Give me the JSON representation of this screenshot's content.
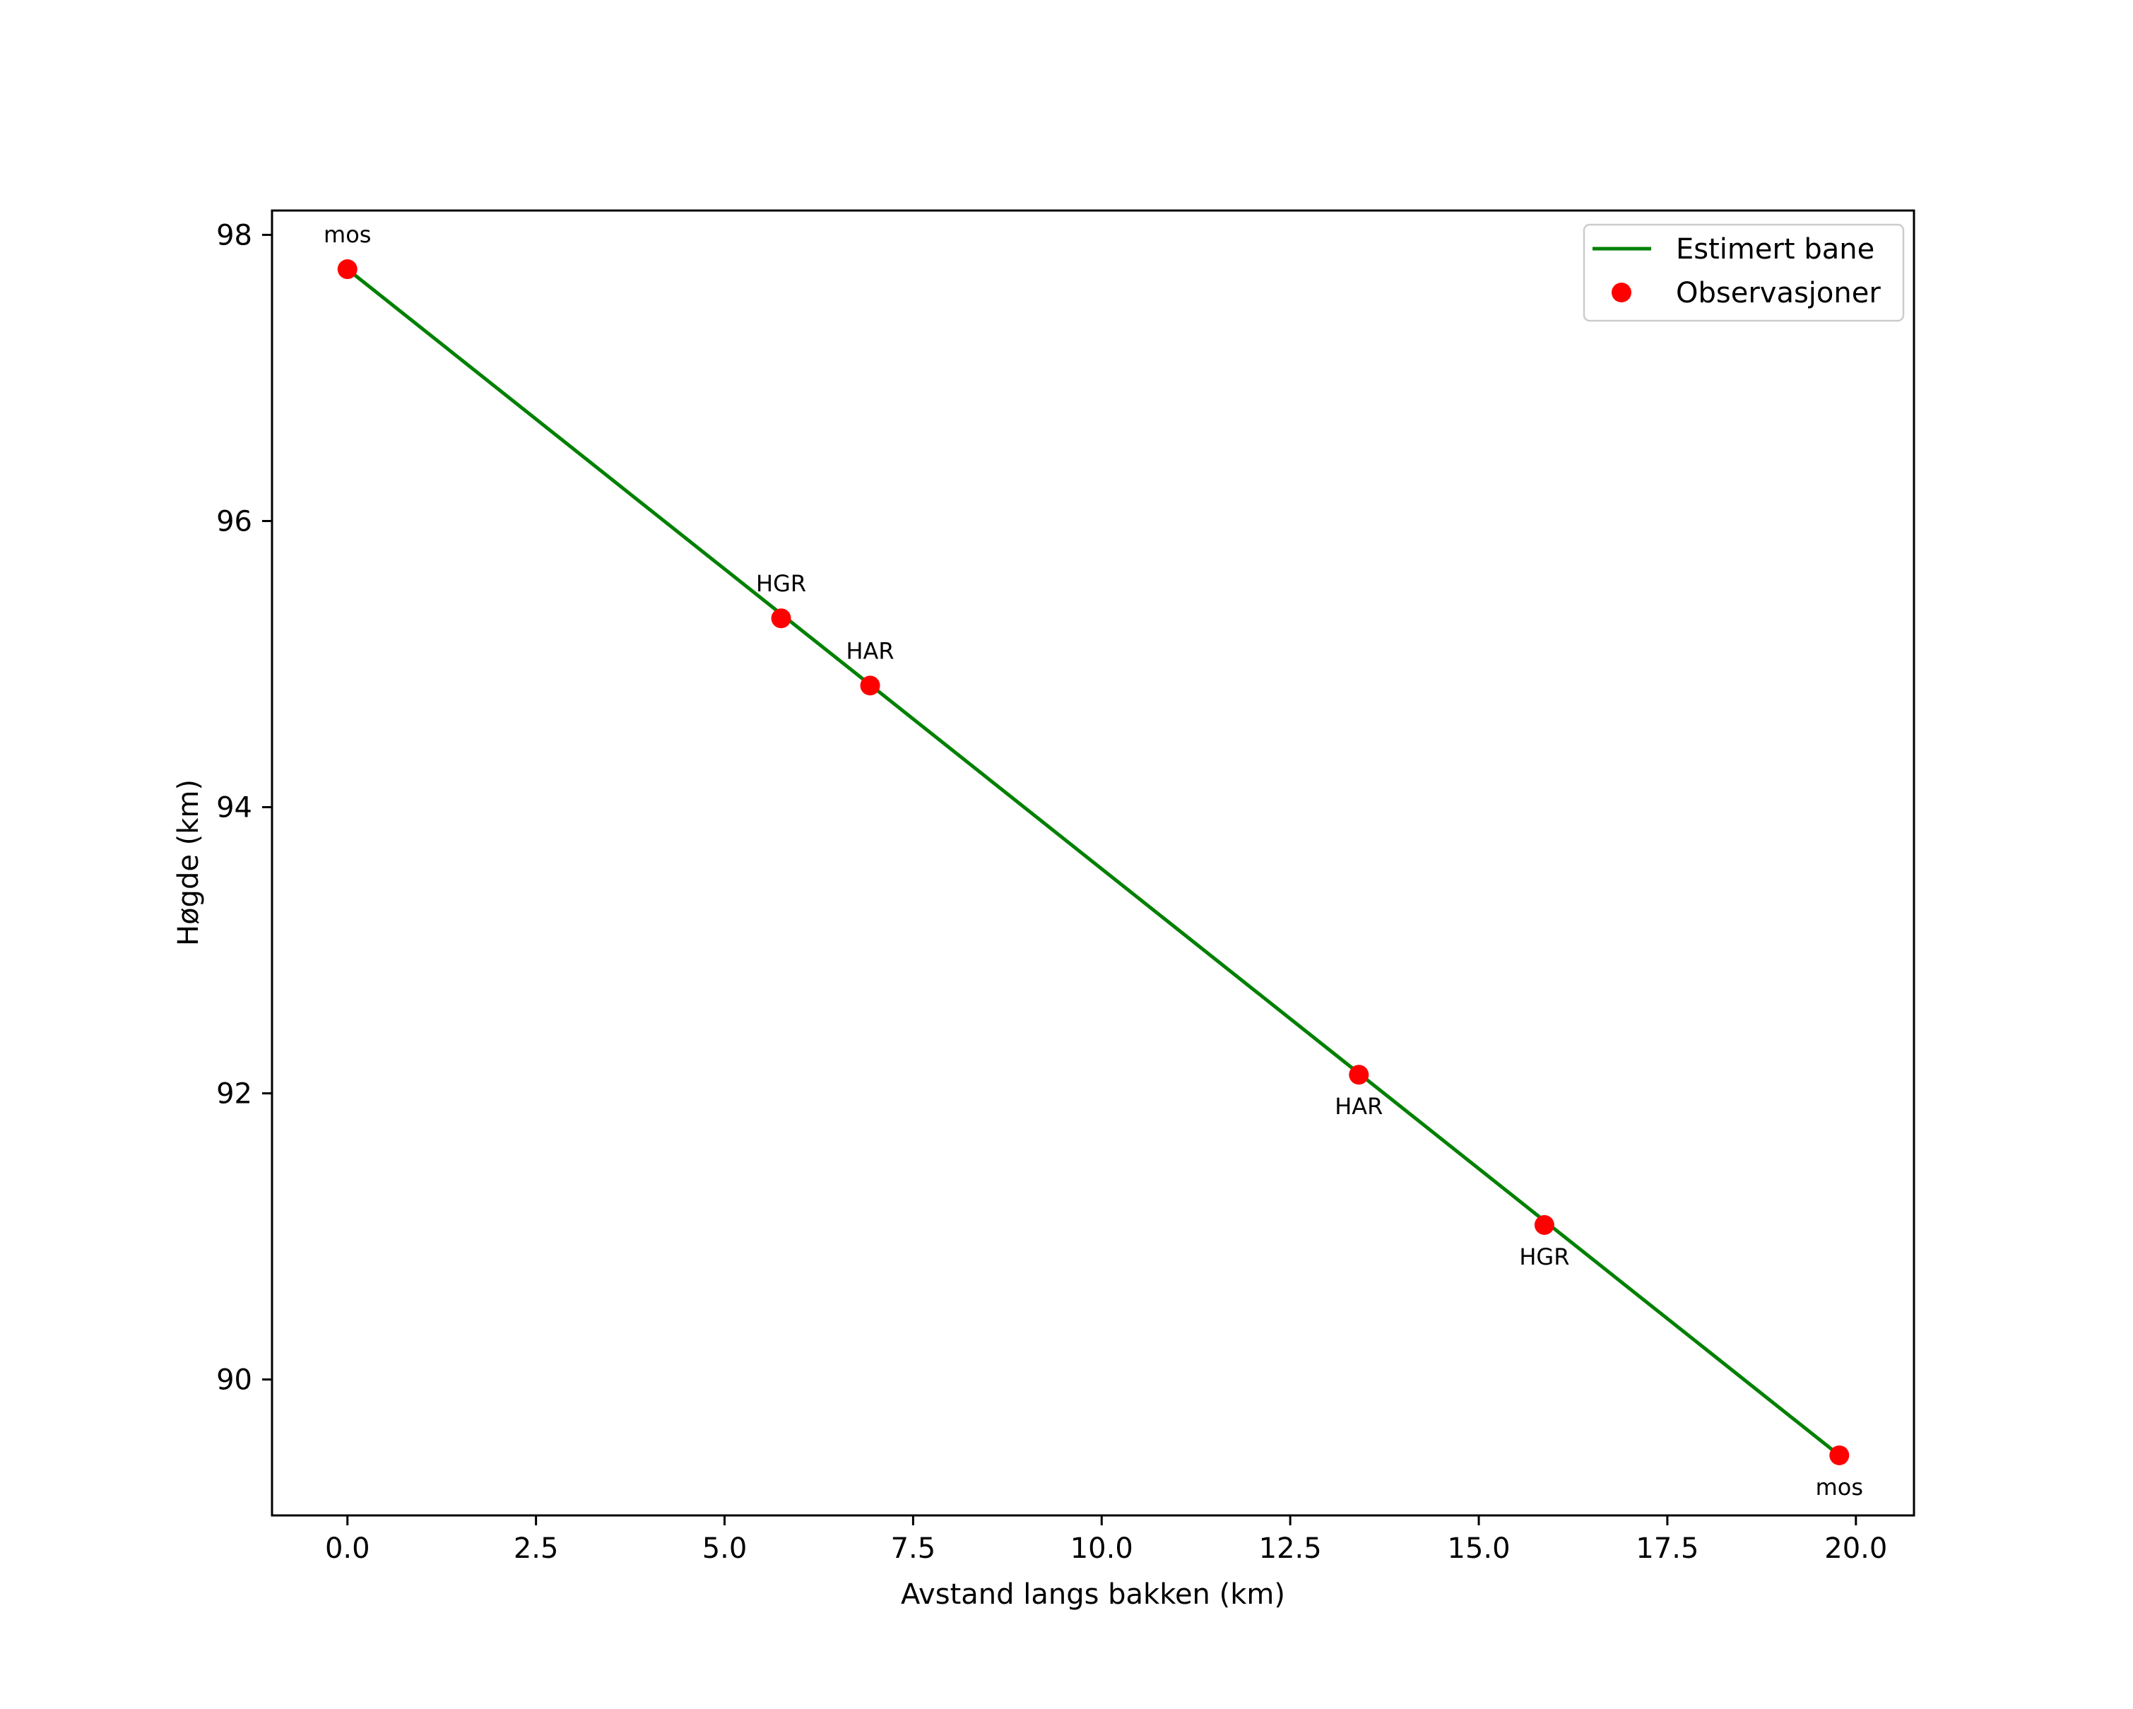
{
  "chart_data": {
    "type": "line",
    "title": "",
    "xlabel": "Avstand langs bakken (km)",
    "ylabel": "Høgde (km)",
    "xlim": [
      -1.0,
      20.77
    ],
    "ylim": [
      89.05,
      98.17
    ],
    "xticks": [
      0.0,
      2.5,
      5.0,
      7.5,
      10.0,
      12.5,
      15.0,
      17.5,
      20.0
    ],
    "xtick_labels": [
      "0.0",
      "2.5",
      "5.0",
      "7.5",
      "10.0",
      "12.5",
      "15.0",
      "17.5",
      "20.0"
    ],
    "yticks": [
      90,
      92,
      94,
      96,
      98
    ],
    "ytick_labels": [
      "90",
      "92",
      "94",
      "96",
      "98"
    ],
    "grid": false,
    "legend_position": "upper right",
    "series": [
      {
        "name": "Estimert bane",
        "kind": "line",
        "color": "#008000",
        "x": [
          0.0,
          19.78
        ],
        "y": [
          97.76,
          89.47
        ]
      },
      {
        "name": "Observasjoner",
        "kind": "scatter",
        "color": "#ff0000",
        "x": [
          0.0,
          5.75,
          6.93,
          13.41,
          15.87,
          19.78
        ],
        "y": [
          97.76,
          95.32,
          94.85,
          92.13,
          91.08,
          89.47
        ],
        "labels": [
          "mos",
          "HGR",
          "HAR",
          "HAR",
          "HGR",
          "mos"
        ],
        "label_positions": [
          "above",
          "above",
          "above",
          "below",
          "below",
          "below"
        ]
      }
    ]
  },
  "legend": {
    "items": [
      {
        "label": "Estimert bane",
        "marker": "line",
        "color": "#008000"
      },
      {
        "label": "Observasjoner",
        "marker": "dot",
        "color": "#ff0000"
      }
    ]
  }
}
